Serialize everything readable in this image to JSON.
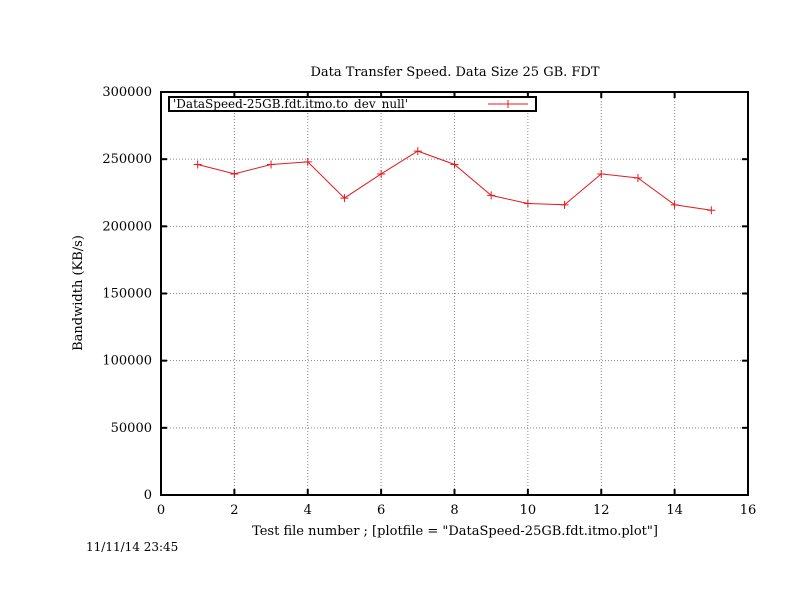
{
  "timestamp": "11/11/14 23:45",
  "chart_data": {
    "type": "line",
    "title": "Data Transfer Speed. Data Size 25 GB. FDT",
    "xlabel": "Test file number ; [plotfile = \"DataSpeed-25GB.fdt.itmo.plot\"]",
    "ylabel": "Bandwidth (KB/s)",
    "xlim": [
      0,
      16
    ],
    "ylim": [
      0,
      300000
    ],
    "xticks": [
      0,
      2,
      4,
      6,
      8,
      10,
      12,
      14,
      16
    ],
    "yticks": [
      0,
      50000,
      100000,
      150000,
      200000,
      250000,
      300000
    ],
    "grid": true,
    "legend_position": "top-left",
    "series": [
      {
        "name": "'DataSpeed-25GB.fdt.itmo.to_dev_null'",
        "color": "#e41a1c",
        "marker": "plus",
        "x": [
          1,
          2,
          3,
          4,
          5,
          6,
          7,
          8,
          9,
          10,
          11,
          12,
          13,
          14,
          15
        ],
        "y": [
          246000,
          239000,
          246000,
          248000,
          221000,
          239000,
          256000,
          246000,
          223000,
          217000,
          216000,
          239000,
          236000,
          216000,
          212000
        ]
      }
    ]
  }
}
